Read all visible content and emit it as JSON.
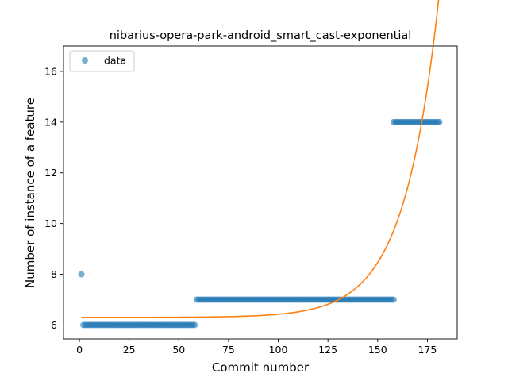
{
  "chart_data": {
    "type": "scatter",
    "title": "nibarius-opera-park-android_smart_cast-exponential",
    "xlabel": "Commit number",
    "ylabel": "Number of instance of a feature",
    "xlim": [
      -8,
      190
    ],
    "ylim": [
      5.45,
      17.0
    ],
    "xticks": [
      0,
      25,
      50,
      75,
      100,
      125,
      150,
      175
    ],
    "yticks": [
      6,
      8,
      10,
      12,
      14,
      16
    ],
    "grid": false,
    "legend": {
      "position": "top-left",
      "entries": [
        "data"
      ]
    },
    "colors": {
      "data": "#1f77b4",
      "fit": "#ff7f0e"
    },
    "series": [
      {
        "name": "data",
        "kind": "scatter",
        "segments": [
          {
            "x_start": 1,
            "x_end": 1,
            "y": 8
          },
          {
            "x_start": 2,
            "x_end": 58,
            "y": 6
          },
          {
            "x_start": 59,
            "x_end": 158,
            "y": 7
          },
          {
            "x_start": 158,
            "x_end": 181,
            "y": 14
          }
        ]
      },
      {
        "kind": "line",
        "model": "exponential",
        "params": {
          "a": 6.3,
          "b": 0.0004,
          "c": 0.0573
        },
        "x_range": [
          1,
          181
        ]
      }
    ]
  }
}
